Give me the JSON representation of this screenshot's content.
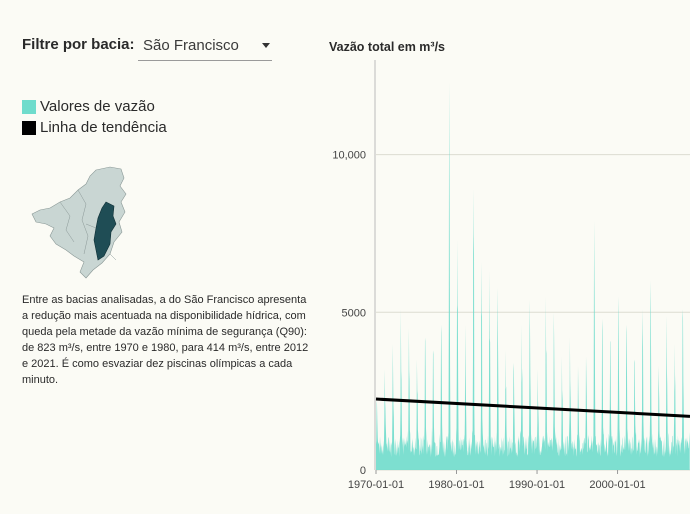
{
  "filter": {
    "label": "Filtre por bacia:",
    "selected": "São Francisco"
  },
  "legend": [
    {
      "label": "Valores de vazão",
      "color": "#6fdccc"
    },
    {
      "label": "Linha de tendência",
      "color": "#000000"
    }
  ],
  "description": "Entre as bacias analisadas, a do São Francisco apresenta a redução mais acentuada na disponibilidade hídrica, com queda pela metade da vazão mínima de segurança (Q90): de 823 m³/s, entre 1970 e 1980, para 414 m³/s, entre 2012 e 2021. É como esvaziar dez piscinas olímpicas a cada minuto.",
  "colors": {
    "flow": "#6fdccc",
    "trend": "#000000",
    "basin_highlight": "#1f4d55",
    "basin_other": "#c9d6d3",
    "background": "#fbfbf5"
  },
  "chart_data": {
    "type": "area",
    "title": "Vazão total em m³/s",
    "x_range": [
      "1970-01-01",
      "2008-12-31"
    ],
    "ylim": [
      0,
      13000
    ],
    "y_ticks": [
      {
        "value": 0,
        "label": "0"
      },
      {
        "value": 5000,
        "label": "5000"
      },
      {
        "value": 10000,
        "label": "10,000"
      }
    ],
    "x_ticks": [
      "1970-01-01",
      "1980-01-01",
      "1990-01-01",
      "2000-01-01"
    ],
    "grid": true,
    "series": [
      {
        "name": "Valores de vazão",
        "color": "#6fdccc",
        "annual_peaks": [
          {
            "year": 1970,
            "peak": 2200
          },
          {
            "year": 1971,
            "peak": 3200
          },
          {
            "year": 1972,
            "peak": 4000
          },
          {
            "year": 1973,
            "peak": 5100
          },
          {
            "year": 1974,
            "peak": 4500
          },
          {
            "year": 1975,
            "peak": 3500
          },
          {
            "year": 1976,
            "peak": 4200
          },
          {
            "year": 1977,
            "peak": 3800
          },
          {
            "year": 1978,
            "peak": 4600
          },
          {
            "year": 1979,
            "peak": 12300
          },
          {
            "year": 1980,
            "peak": 7300
          },
          {
            "year": 1981,
            "peak": 4600
          },
          {
            "year": 1982,
            "peak": 8900
          },
          {
            "year": 1983,
            "peak": 6600
          },
          {
            "year": 1984,
            "peak": 6300
          },
          {
            "year": 1985,
            "peak": 5800
          },
          {
            "year": 1986,
            "peak": 3800
          },
          {
            "year": 1987,
            "peak": 3400
          },
          {
            "year": 1988,
            "peak": 4600
          },
          {
            "year": 1989,
            "peak": 5400
          },
          {
            "year": 1990,
            "peak": 3200
          },
          {
            "year": 1991,
            "peak": 5500
          },
          {
            "year": 1992,
            "peak": 5000
          },
          {
            "year": 1993,
            "peak": 3600
          },
          {
            "year": 1994,
            "peak": 4200
          },
          {
            "year": 1995,
            "peak": 3300
          },
          {
            "year": 1996,
            "peak": 3600
          },
          {
            "year": 1997,
            "peak": 7900
          },
          {
            "year": 1998,
            "peak": 4800
          },
          {
            "year": 1999,
            "peak": 4100
          },
          {
            "year": 2000,
            "peak": 5500
          },
          {
            "year": 2001,
            "peak": 4600
          },
          {
            "year": 2002,
            "peak": 3500
          },
          {
            "year": 2003,
            "peak": 5100
          },
          {
            "year": 2004,
            "peak": 6000
          },
          {
            "year": 2005,
            "peak": 3300
          },
          {
            "year": 2006,
            "peak": 4900
          },
          {
            "year": 2007,
            "peak": 4000
          },
          {
            "year": 2008,
            "peak": 5100
          }
        ],
        "low_flow_range": [
          400,
          1100
        ]
      },
      {
        "name": "Linha de tendência",
        "color": "#000000",
        "points": [
          {
            "x": "1970-01-01",
            "y": 2250
          },
          {
            "x": "2008-12-31",
            "y": 1700
          }
        ]
      }
    ]
  }
}
